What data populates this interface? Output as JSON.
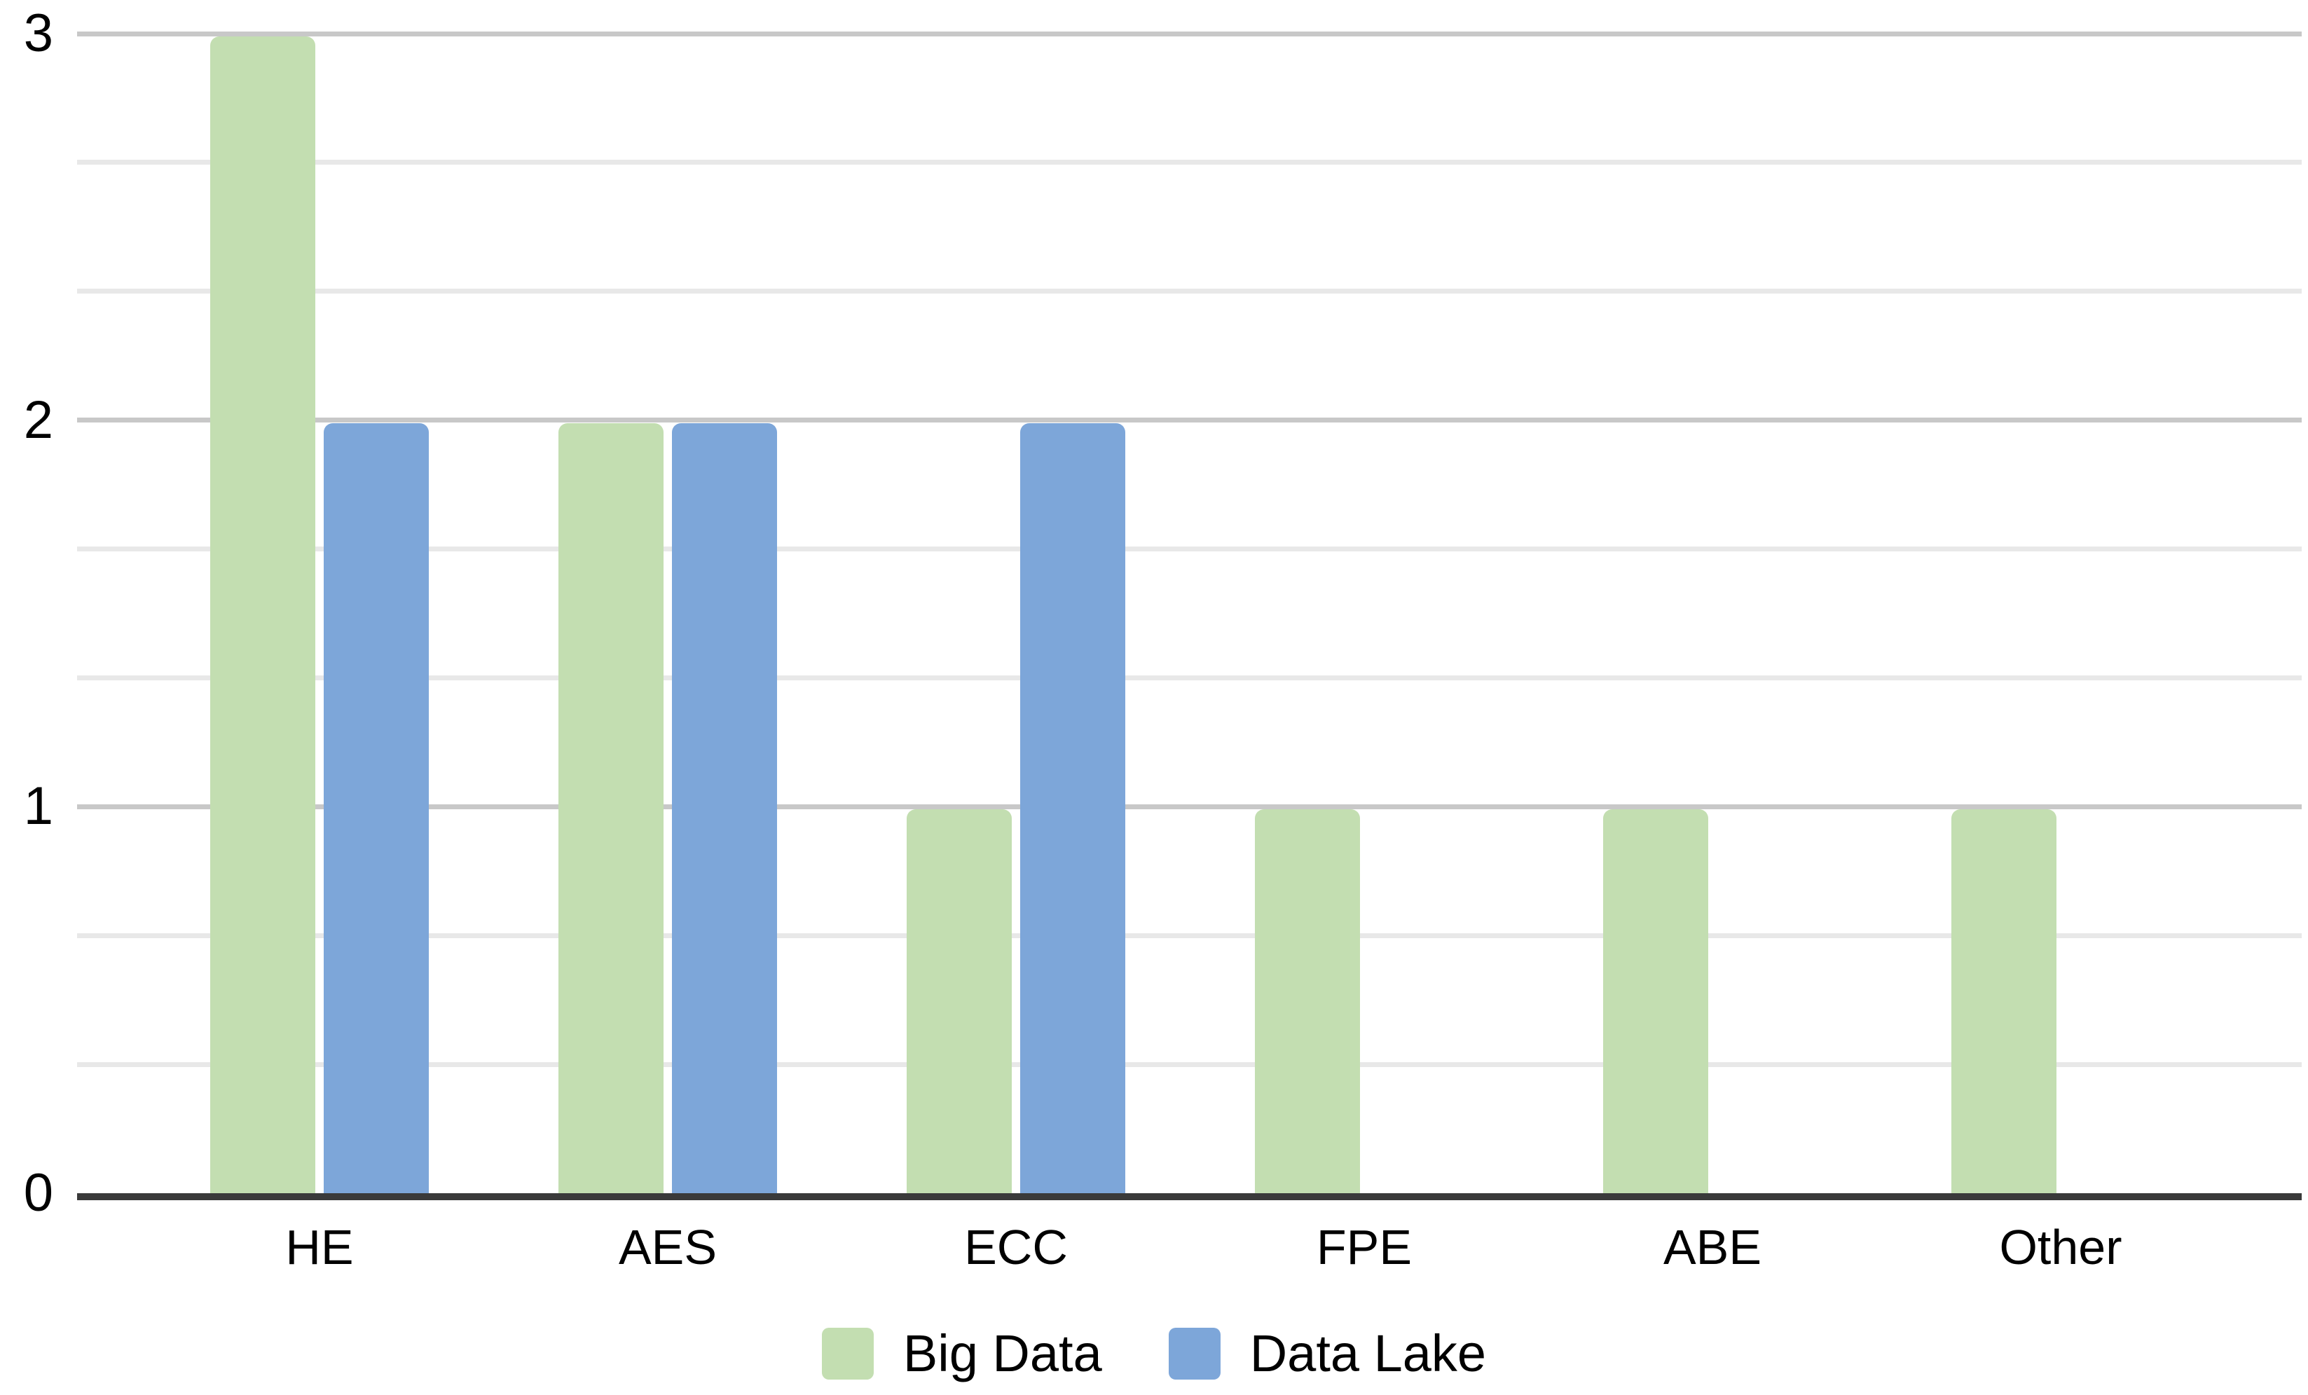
{
  "chart_data": {
    "type": "bar",
    "title": "",
    "xlabel": "",
    "ylabel": "",
    "categories": [
      "HE",
      "AES",
      "ECC",
      "FPE",
      "ABE",
      "Other"
    ],
    "series": [
      {
        "name": "Big Data",
        "color": "#c3deb1",
        "values": [
          3,
          2,
          1,
          1,
          1,
          1
        ]
      },
      {
        "name": "Data Lake",
        "color": "#7da6d9",
        "values": [
          2,
          2,
          2,
          null,
          null,
          null
        ]
      }
    ],
    "ylim": [
      0,
      3
    ],
    "yticks": [
      0,
      1,
      2,
      3
    ],
    "minor_grid_interval": 0.3333,
    "grid": true,
    "legend_position": "bottom",
    "colors": {
      "axis_baseline": "#3a3a3a",
      "major_gridline": "#c8c8c8",
      "minor_gridline": "#e8e8e8",
      "text": "#000000",
      "background": "#ffffff"
    }
  }
}
